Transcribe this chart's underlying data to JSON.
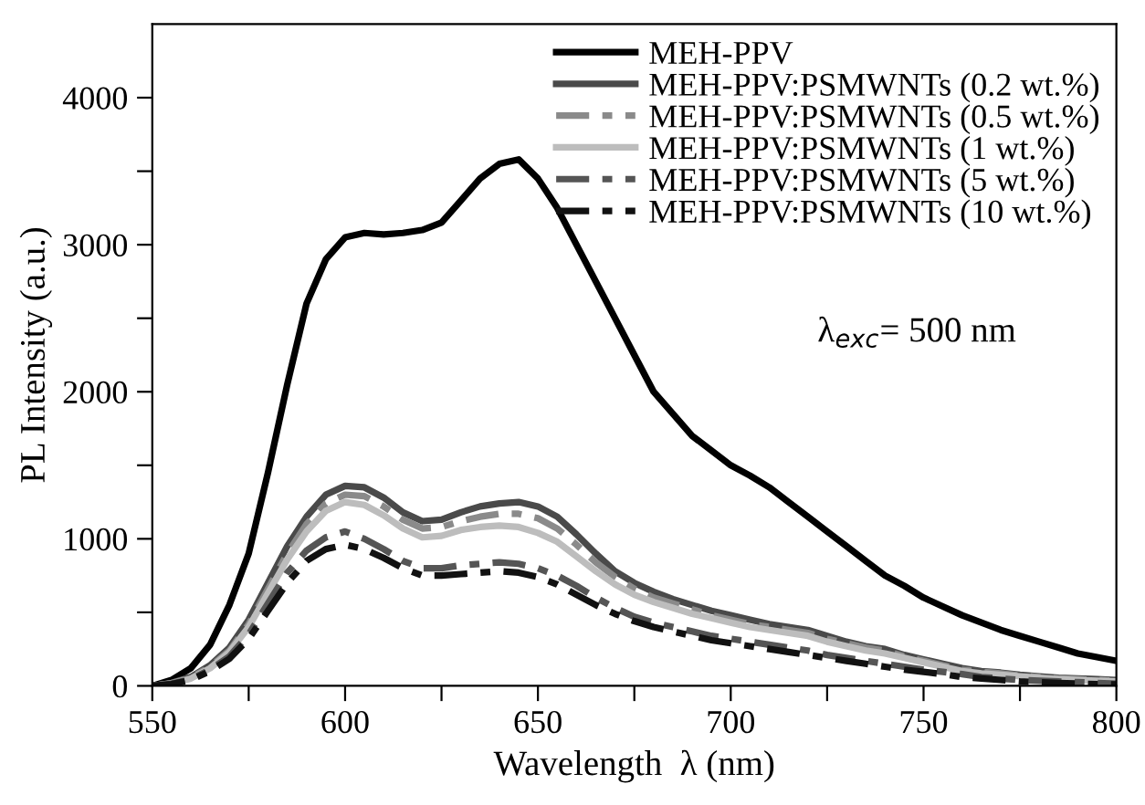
{
  "chart_data": {
    "type": "line",
    "xlabel": "Wavelength  λ (nm)",
    "ylabel": "PL Intensity (a.u.)",
    "annotations": [
      "λ$_{exc}$= 500 nm"
    ],
    "legend": "top right",
    "grid": false,
    "marker": "none",
    "xlim": [
      550,
      800
    ],
    "ylim": [
      0,
      4500
    ],
    "xticks": [
      550,
      {
        "value": 575,
        "label": null
      },
      600,
      {
        "value": 625,
        "label": null
      },
      650,
      {
        "value": 675,
        "label": null
      },
      700,
      {
        "value": 725,
        "label": null
      },
      750,
      {
        "value": 775,
        "label": null
      },
      800
    ],
    "yticks": [
      0,
      {
        "value": 500,
        "label": null
      },
      1000,
      {
        "value": 1500,
        "label": null
      },
      2000,
      {
        "value": 2500,
        "label": null
      },
      3000,
      {
        "value": 3500,
        "label": null
      },
      4000
    ],
    "x": [
      550,
      555,
      560,
      565,
      570,
      575,
      580,
      585,
      590,
      595,
      600,
      605,
      610,
      615,
      620,
      625,
      630,
      635,
      640,
      645,
      650,
      655,
      660,
      665,
      670,
      675,
      680,
      685,
      690,
      695,
      700,
      705,
      710,
      715,
      720,
      725,
      730,
      735,
      740,
      745,
      750,
      755,
      760,
      765,
      770,
      775,
      780,
      785,
      790,
      795,
      800
    ],
    "series": [
      {
        "name": "MEH-PPV",
        "color": "#000000",
        "line_style": "solid",
        "values": [
          0,
          40,
          120,
          280,
          550,
          900,
          1450,
          2050,
          2600,
          2900,
          3050,
          3080,
          3070,
          3080,
          3100,
          3150,
          3300,
          3450,
          3550,
          3580,
          3450,
          3250,
          3000,
          2750,
          2500,
          2250,
          2000,
          1850,
          1700,
          1600,
          1500,
          1430,
          1350,
          1250,
          1150,
          1050,
          950,
          850,
          750,
          680,
          600,
          540,
          480,
          430,
          380,
          340,
          300,
          260,
          220,
          195,
          170
        ]
      },
      {
        "name": "MEH-PPV:PSMWNTs (0.2 wt.%)",
        "color": "#4a4a4a",
        "line_style": "solid",
        "values": [
          0,
          20,
          60,
          140,
          260,
          450,
          700,
          950,
          1150,
          1300,
          1360,
          1350,
          1280,
          1180,
          1120,
          1130,
          1180,
          1220,
          1240,
          1250,
          1220,
          1150,
          1030,
          900,
          780,
          700,
          640,
          590,
          550,
          510,
          480,
          450,
          420,
          400,
          380,
          340,
          300,
          270,
          250,
          210,
          180,
          150,
          120,
          100,
          90,
          75,
          65,
          55,
          50,
          45,
          40
        ]
      },
      {
        "name": "MEH-PPV:PSMWNTs (0.5 wt.%)",
        "color": "#8a8a8a",
        "line_style": "dashed",
        "values": [
          0,
          18,
          55,
          130,
          240,
          420,
          660,
          900,
          1100,
          1240,
          1300,
          1290,
          1220,
          1130,
          1070,
          1080,
          1120,
          1150,
          1170,
          1170,
          1140,
          1070,
          960,
          840,
          740,
          660,
          600,
          560,
          520,
          480,
          450,
          420,
          400,
          380,
          360,
          320,
          290,
          260,
          240,
          200,
          170,
          140,
          110,
          95,
          85,
          70,
          60,
          50,
          45,
          40,
          35
        ]
      },
      {
        "name": "MEH-PPV:PSMWNTs (1 wt.%)",
        "color": "#bdbdbd",
        "line_style": "solid",
        "values": [
          0,
          16,
          50,
          120,
          230,
          400,
          630,
          860,
          1050,
          1190,
          1250,
          1230,
          1160,
          1070,
          1010,
          1020,
          1060,
          1080,
          1090,
          1080,
          1040,
          980,
          880,
          780,
          690,
          620,
          570,
          530,
          490,
          460,
          430,
          400,
          380,
          360,
          340,
          300,
          270,
          240,
          220,
          190,
          160,
          130,
          100,
          85,
          75,
          65,
          55,
          45,
          40,
          35,
          30
        ]
      },
      {
        "name": "MEH-PPV:PSMWNTs (5 wt.%)",
        "color": "#555555",
        "line_style": "dashed",
        "values": [
          0,
          15,
          45,
          110,
          200,
          350,
          560,
          770,
          920,
          1010,
          1050,
          1000,
          930,
          850,
          800,
          800,
          820,
          830,
          840,
          830,
          800,
          750,
          680,
          600,
          530,
          470,
          430,
          400,
          370,
          340,
          320,
          300,
          280,
          260,
          240,
          210,
          190,
          170,
          150,
          130,
          110,
          95,
          80,
          60,
          50,
          40,
          35,
          30,
          25,
          20,
          15
        ]
      },
      {
        "name": "MEH-PPV:PSMWNTs (10 wt.%)",
        "color": "#111111",
        "line_style": "dashed",
        "values": [
          0,
          12,
          40,
          100,
          185,
          320,
          510,
          700,
          850,
          930,
          960,
          930,
          870,
          800,
          750,
          750,
          760,
          770,
          780,
          770,
          740,
          690,
          620,
          550,
          490,
          440,
          400,
          370,
          340,
          310,
          290,
          270,
          250,
          230,
          210,
          190,
          170,
          150,
          130,
          110,
          95,
          80,
          60,
          50,
          40,
          30,
          25,
          20,
          15,
          12,
          10
        ]
      }
    ]
  }
}
